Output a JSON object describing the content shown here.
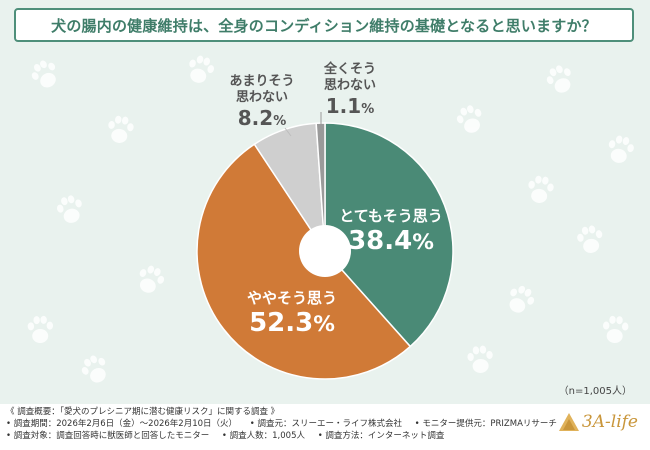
{
  "title": "犬の腸内の健康維持は、全身のコンディション維持の基礎となると思いますか？",
  "chart_data": {
    "type": "pie",
    "title": "犬の腸内の健康維持は、全身のコンディション維持の基礎となると思いますか？",
    "slices": [
      {
        "label": "とてもそう思う",
        "value": 38.4,
        "color": "#4a8a76"
      },
      {
        "label": "ややそう思う",
        "value": 52.3,
        "color": "#d07a37"
      },
      {
        "label": "あまりそう思わない",
        "value": 8.2,
        "color": "#cfcfcf"
      },
      {
        "label": "全くそう思わない",
        "value": 1.1,
        "color": "#9a9a9a"
      }
    ],
    "n_note": "（n=1,005人）"
  },
  "labels": {
    "s0_text": "とてもそう思う",
    "s0_value": "38.4",
    "s0_unit": "%",
    "s1_text": "ややそう思う",
    "s1_value": "52.3",
    "s1_unit": "%",
    "s2_line1": "あまりそう",
    "s2_line2": "思わない",
    "s2_value": "8.2",
    "s2_unit": "%",
    "s3_line1": "全くそう",
    "s3_line2": "思わない",
    "s3_value": "1.1",
    "s3_unit": "%"
  },
  "footer": {
    "overview": "《 調査概要：「愛犬のプレシニア期に潜む健康リスク」に関する調査 》",
    "period": "• 調査期間：2026年2月6日（金）〜2026年2月10日（火）",
    "org": "• 調査元：スリーエー・ライフ株式会社",
    "monitor": "• モニター提供元：PRIZMAリサーチ",
    "target": "• 調査対象：調査回答時に獣医師と回答したモニター",
    "count": "• 調査人数：1,005人",
    "method": "• 調査方法：インターネット調査"
  },
  "logo": {
    "text": "3A-life",
    "color": "#c9963b"
  }
}
